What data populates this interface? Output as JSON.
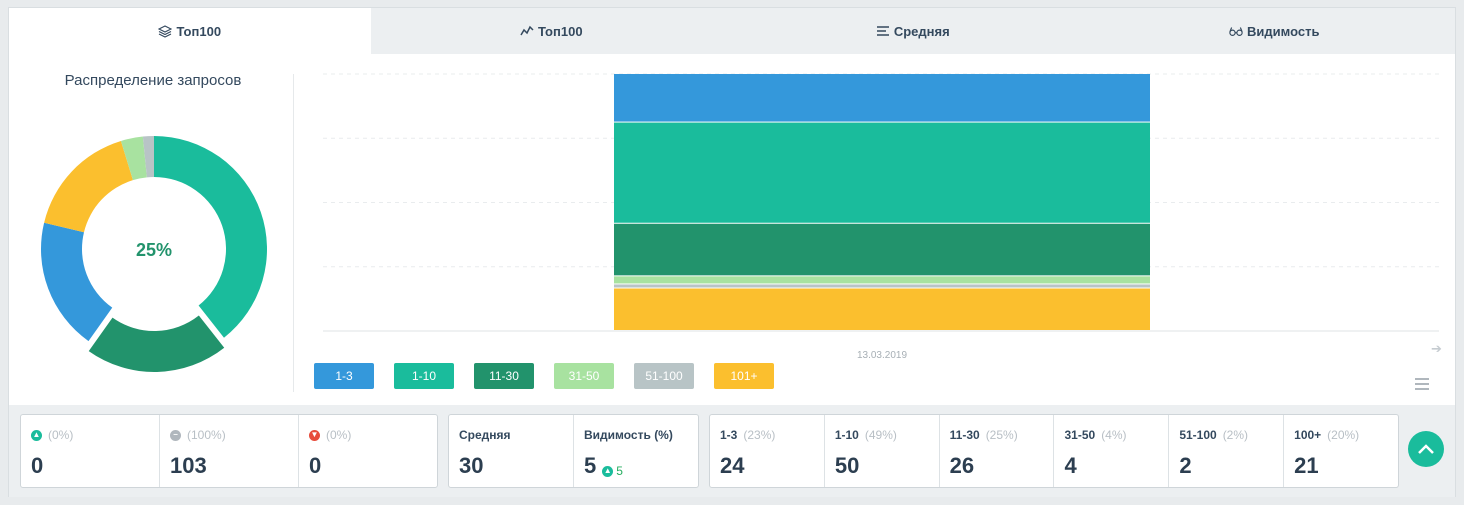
{
  "tabs": [
    {
      "label": "Топ100",
      "icon": "layers-icon",
      "active": true
    },
    {
      "label": "Топ100",
      "icon": "line-chart-icon",
      "active": false
    },
    {
      "label": "Средняя",
      "icon": "lines-icon",
      "active": false
    },
    {
      "label": "Видимость",
      "icon": "glasses-icon",
      "active": false
    }
  ],
  "pie": {
    "title": "Распределение запросов",
    "center_label": "25%"
  },
  "colors": {
    "1-3": "#3498db",
    "1-10": "#1abc9c",
    "11-30": "#22936c",
    "31-50": "#a8e2a0",
    "51-100": "#b8c4c6",
    "101+": "#fbbf2e"
  },
  "chart_data": {
    "type": "bar",
    "stacked": true,
    "categories": [
      "13.03.2019"
    ],
    "series": [
      {
        "name": "1-3",
        "values": [
          24
        ]
      },
      {
        "name": "1-10",
        "values": [
          50
        ]
      },
      {
        "name": "11-30",
        "values": [
          26
        ]
      },
      {
        "name": "31-50",
        "values": [
          4
        ]
      },
      {
        "name": "51-100",
        "values": [
          2
        ]
      },
      {
        "name": "101+",
        "values": [
          21
        ]
      }
    ],
    "pie_values": [
      {
        "name": "1-10",
        "value": 50
      },
      {
        "name": "11-30",
        "value": 26
      },
      {
        "name": "1-3",
        "value": 24
      },
      {
        "name": "101+",
        "value": 21
      },
      {
        "name": "31-50",
        "value": 4
      },
      {
        "name": "51-100",
        "value": 2
      }
    ],
    "exploded_slice": "11-30",
    "legend_position": "bottom-left",
    "grid": true
  },
  "legend": [
    "1-3",
    "1-10",
    "11-30",
    "31-50",
    "51-100",
    "101+"
  ],
  "stats_changes": [
    {
      "icon": "arrow-up-circle-icon",
      "color": "#1abc9c",
      "pct": "(0%)",
      "value": "0"
    },
    {
      "icon": "minus-circle-icon",
      "color": "#b0b7bd",
      "pct": "(100%)",
      "value": "103"
    },
    {
      "icon": "arrow-down-circle-icon",
      "color": "#e74c3c",
      "pct": "(0%)",
      "value": "0"
    }
  ],
  "stats_avg": [
    {
      "label": "Средняя",
      "value": "30"
    },
    {
      "label": "Видимость (%)",
      "value": "5",
      "change": "5"
    }
  ],
  "stats_ranges": [
    {
      "label": "1-3",
      "pct": "(23%)",
      "value": "24"
    },
    {
      "label": "1-10",
      "pct": "(49%)",
      "value": "50"
    },
    {
      "label": "11-30",
      "pct": "(25%)",
      "value": "26"
    },
    {
      "label": "31-50",
      "pct": "(4%)",
      "value": "4"
    },
    {
      "label": "51-100",
      "pct": "(2%)",
      "value": "2"
    },
    {
      "label": "100+",
      "pct": "(20%)",
      "value": "21"
    }
  ]
}
